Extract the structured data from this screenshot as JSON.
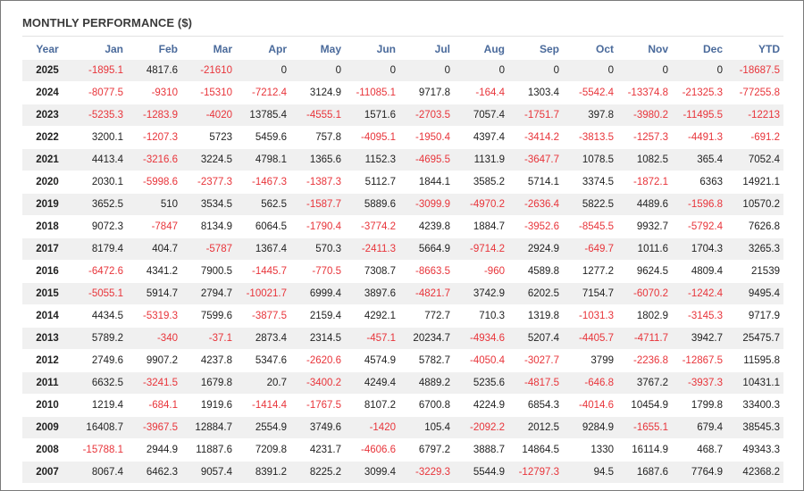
{
  "title": "MONTHLY PERFORMANCE ($)",
  "colors": {
    "header": "#4a6a9b",
    "negative": "#e8343a",
    "positive": "#222222",
    "stripe": "#f0f0f0"
  },
  "chart_data": {
    "type": "table",
    "title": "MONTHLY PERFORMANCE ($)",
    "columns": [
      "Year",
      "Jan",
      "Feb",
      "Mar",
      "Apr",
      "May",
      "Jun",
      "Jul",
      "Aug",
      "Sep",
      "Oct",
      "Nov",
      "Dec",
      "YTD"
    ],
    "rows": [
      [
        "2025",
        "-1895.1",
        "4817.6",
        "-21610",
        "0",
        "0",
        "0",
        "0",
        "0",
        "0",
        "0",
        "0",
        "0",
        "-18687.5"
      ],
      [
        "2024",
        "-8077.5",
        "-9310",
        "-15310",
        "-7212.4",
        "3124.9",
        "-11085.1",
        "9717.8",
        "-164.4",
        "1303.4",
        "-5542.4",
        "-13374.8",
        "-21325.3",
        "-77255.8"
      ],
      [
        "2023",
        "-5235.3",
        "-1283.9",
        "-4020",
        "13785.4",
        "-4555.1",
        "1571.6",
        "-2703.5",
        "7057.4",
        "-1751.7",
        "397.8",
        "-3980.2",
        "-11495.5",
        "-12213"
      ],
      [
        "2022",
        "3200.1",
        "-1207.3",
        "5723",
        "5459.6",
        "757.8",
        "-4095.1",
        "-1950.4",
        "4397.4",
        "-3414.2",
        "-3813.5",
        "-1257.3",
        "-4491.3",
        "-691.2"
      ],
      [
        "2021",
        "4413.4",
        "-3216.6",
        "3224.5",
        "4798.1",
        "1365.6",
        "1152.3",
        "-4695.5",
        "1131.9",
        "-3647.7",
        "1078.5",
        "1082.5",
        "365.4",
        "7052.4"
      ],
      [
        "2020",
        "2030.1",
        "-5998.6",
        "-2377.3",
        "-1467.3",
        "-1387.3",
        "5112.7",
        "1844.1",
        "3585.2",
        "5714.1",
        "3374.5",
        "-1872.1",
        "6363",
        "14921.1"
      ],
      [
        "2019",
        "3652.5",
        "510",
        "3534.5",
        "562.5",
        "-1587.7",
        "5889.6",
        "-3099.9",
        "-4970.2",
        "-2636.4",
        "5822.5",
        "4489.6",
        "-1596.8",
        "10570.2"
      ],
      [
        "2018",
        "9072.3",
        "-7847",
        "8134.9",
        "6064.5",
        "-1790.4",
        "-3774.2",
        "4239.8",
        "1884.7",
        "-3952.6",
        "-8545.5",
        "9932.7",
        "-5792.4",
        "7626.8"
      ],
      [
        "2017",
        "8179.4",
        "404.7",
        "-5787",
        "1367.4",
        "570.3",
        "-2411.3",
        "5664.9",
        "-9714.2",
        "2924.9",
        "-649.7",
        "1011.6",
        "1704.3",
        "3265.3"
      ],
      [
        "2016",
        "-6472.6",
        "4341.2",
        "7900.5",
        "-1445.7",
        "-770.5",
        "7308.7",
        "-8663.5",
        "-960",
        "4589.8",
        "1277.2",
        "9624.5",
        "4809.4",
        "21539"
      ],
      [
        "2015",
        "-5055.1",
        "5914.7",
        "2794.7",
        "-10021.7",
        "6999.4",
        "3897.6",
        "-4821.7",
        "3742.9",
        "6202.5",
        "7154.7",
        "-6070.2",
        "-1242.4",
        "9495.4"
      ],
      [
        "2014",
        "4434.5",
        "-5319.3",
        "7599.6",
        "-3877.5",
        "2159.4",
        "4292.1",
        "772.7",
        "710.3",
        "1319.8",
        "-1031.3",
        "1802.9",
        "-3145.3",
        "9717.9"
      ],
      [
        "2013",
        "5789.2",
        "-340",
        "-37.1",
        "2873.4",
        "2314.5",
        "-457.1",
        "20234.7",
        "-4934.6",
        "5207.4",
        "-4405.7",
        "-4711.7",
        "3942.7",
        "25475.7"
      ],
      [
        "2012",
        "2749.6",
        "9907.2",
        "4237.8",
        "5347.6",
        "-2620.6",
        "4574.9",
        "5782.7",
        "-4050.4",
        "-3027.7",
        "3799",
        "-2236.8",
        "-12867.5",
        "11595.8"
      ],
      [
        "2011",
        "6632.5",
        "-3241.5",
        "1679.8",
        "20.7",
        "-3400.2",
        "4249.4",
        "4889.2",
        "5235.6",
        "-4817.5",
        "-646.8",
        "3767.2",
        "-3937.3",
        "10431.1"
      ],
      [
        "2010",
        "1219.4",
        "-684.1",
        "1919.6",
        "-1414.4",
        "-1767.5",
        "8107.2",
        "6700.8",
        "4224.9",
        "6854.3",
        "-4014.6",
        "10454.9",
        "1799.8",
        "33400.3"
      ],
      [
        "2009",
        "16408.7",
        "-3967.5",
        "12884.7",
        "2554.9",
        "3749.6",
        "-1420",
        "105.4",
        "-2092.2",
        "2012.5",
        "9284.9",
        "-1655.1",
        "679.4",
        "38545.3"
      ],
      [
        "2008",
        "-15788.1",
        "2944.9",
        "11887.6",
        "7209.8",
        "4231.7",
        "-4606.6",
        "6797.2",
        "3888.7",
        "14864.5",
        "1330",
        "16114.9",
        "468.7",
        "49343.3"
      ],
      [
        "2007",
        "8067.4",
        "6462.3",
        "9057.4",
        "8391.2",
        "8225.2",
        "3099.4",
        "-3229.3",
        "5544.9",
        "-12797.3",
        "94.5",
        "1687.6",
        "7764.9",
        "42368.2"
      ]
    ]
  }
}
